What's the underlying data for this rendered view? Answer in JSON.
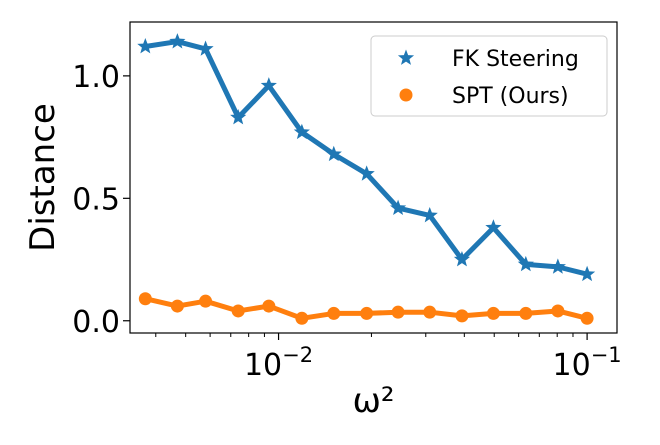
{
  "chart_data": {
    "type": "line",
    "xlabel": "ω²",
    "ylabel": "Distance",
    "xscale": "log",
    "xlim": [
      0.0033,
      0.125
    ],
    "ylim": [
      -0.05,
      1.22
    ],
    "x_ticks": [
      {
        "value": 0.01,
        "base": "10",
        "exp": "−2"
      },
      {
        "value": 0.1,
        "base": "10",
        "exp": "−1"
      }
    ],
    "y_ticks": [
      {
        "value": 0.0,
        "label": "0.0"
      },
      {
        "value": 0.5,
        "label": "0.5"
      },
      {
        "value": 1.0,
        "label": "1.0"
      }
    ],
    "legend_position": "top-right",
    "x": [
      0.0037,
      0.0047,
      0.0058,
      0.0074,
      0.0093,
      0.0119,
      0.0151,
      0.0193,
      0.0244,
      0.0309,
      0.0393,
      0.0497,
      0.0633,
      0.0804,
      0.1
    ],
    "series": [
      {
        "name": "FK Steering",
        "color": "#1f77b4",
        "marker": "star",
        "values": [
          1.12,
          1.14,
          1.11,
          0.83,
          0.96,
          0.77,
          0.68,
          0.6,
          0.46,
          0.43,
          0.25,
          0.38,
          0.23,
          0.22,
          0.19
        ]
      },
      {
        "name": "SPT (Ours)",
        "color": "#ff7f0e",
        "marker": "circle",
        "values": [
          0.09,
          0.06,
          0.08,
          0.04,
          0.06,
          0.01,
          0.03,
          0.03,
          0.035,
          0.035,
          0.02,
          0.03,
          0.03,
          0.04,
          0.01
        ]
      }
    ]
  }
}
